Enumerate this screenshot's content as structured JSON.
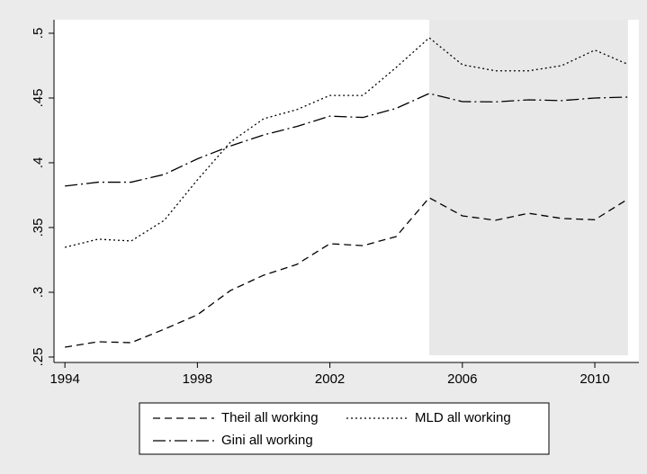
{
  "chart_data": {
    "type": "line",
    "x": [
      1994,
      1995,
      1996,
      1997,
      1998,
      1999,
      2000,
      2001,
      2002,
      2003,
      2004,
      2005,
      2006,
      2007,
      2008,
      2009,
      2010,
      2011
    ],
    "series": [
      {
        "name": "Theil all working",
        "color": "#000000",
        "style": "dash",
        "values": [
          0.2576,
          0.2618,
          0.2611,
          0.2715,
          0.2826,
          0.3014,
          0.3132,
          0.3215,
          0.3375,
          0.336,
          0.343,
          0.373,
          0.359,
          0.3556,
          0.361,
          0.357,
          0.356,
          0.372
        ]
      },
      {
        "name": "MLD all working",
        "color": "#000000",
        "style": "dot",
        "values": [
          0.3347,
          0.341,
          0.3396,
          0.3556,
          0.3868,
          0.416,
          0.434,
          0.441,
          0.452,
          0.452,
          0.4736,
          0.4965,
          0.4757,
          0.471,
          0.471,
          0.475,
          0.487,
          0.476
        ]
      },
      {
        "name": "Gini all working",
        "color": "#000000",
        "style": "dashdot",
        "values": [
          0.382,
          0.385,
          0.385,
          0.391,
          0.403,
          0.413,
          0.4215,
          0.428,
          0.436,
          0.435,
          0.442,
          0.4535,
          0.4472,
          0.447,
          0.4486,
          0.448,
          0.45,
          0.4507
        ]
      }
    ],
    "shade": [
      2005,
      2011
    ],
    "shade_color": "#e8e8e8",
    "xlim": [
      1993.67,
      2011.33
    ],
    "xticks": [
      1994,
      1998,
      2002,
      2006,
      2010
    ],
    "ylim": [
      0.2458,
      0.5104
    ],
    "yticks": [
      {
        "value": 0.25,
        "label": ".25"
      },
      {
        "value": 0.3,
        "label": ".3"
      },
      {
        "value": 0.35,
        "label": ".35"
      },
      {
        "value": 0.4,
        "label": ".4"
      },
      {
        "value": 0.45,
        "label": ".45"
      },
      {
        "value": 0.5,
        "label": ".5"
      }
    ],
    "grid": false,
    "legend": "bottom"
  }
}
